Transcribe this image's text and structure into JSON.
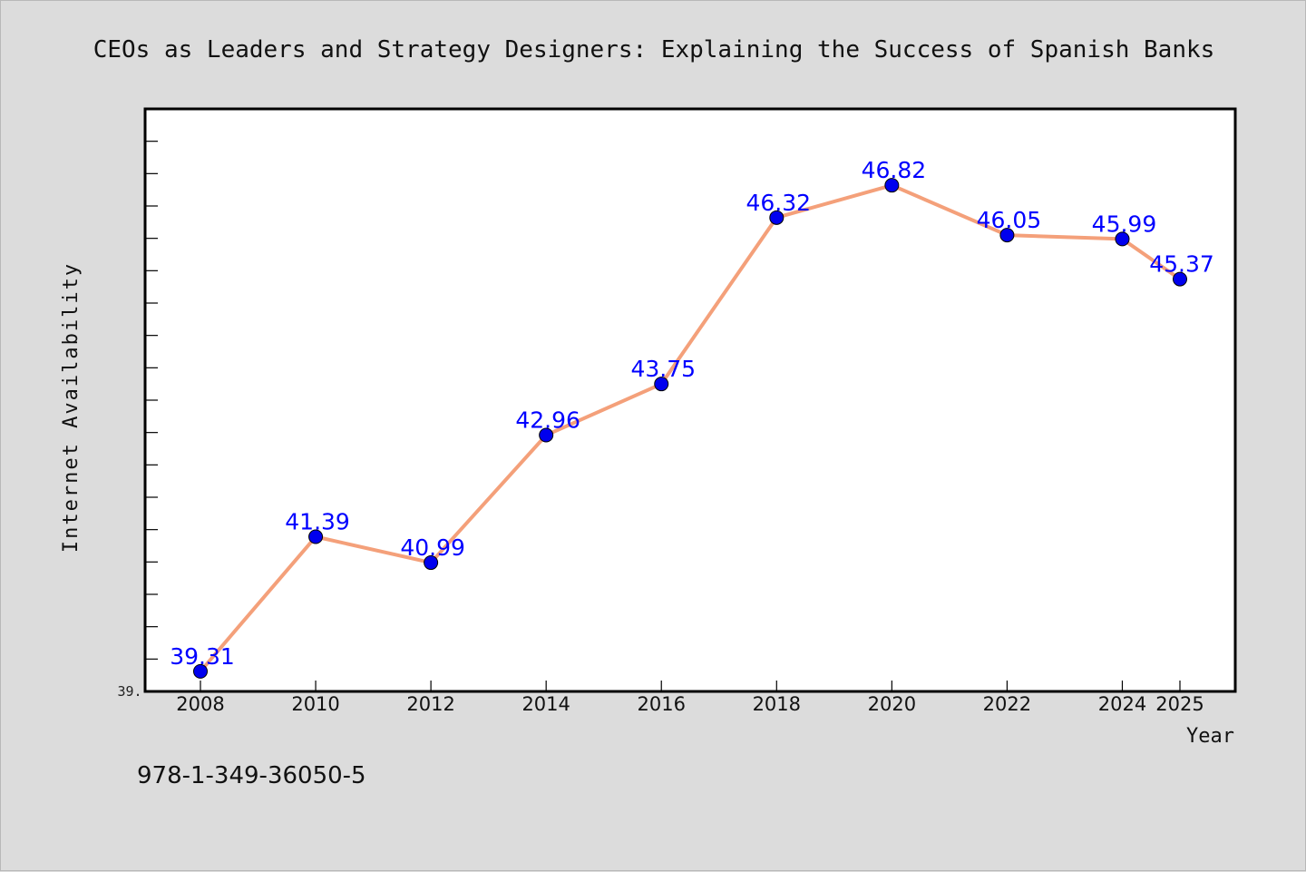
{
  "chart_data": {
    "type": "line",
    "title": "CEOs as Leaders and Strategy Designers: Explaining the Success of Spanish Banks",
    "xlabel": "Year",
    "ylabel": "Internet Availability",
    "x": [
      "2008",
      "2010",
      "2012",
      "2014",
      "2016",
      "2018",
      "2020",
      "2022",
      "2024",
      "2025"
    ],
    "series": [
      {
        "values": [
          39.31,
          41.39,
          40.99,
          42.96,
          43.75,
          46.32,
          46.82,
          46.05,
          45.99,
          45.37
        ],
        "labels": [
          "39.31",
          "41.39",
          "40.99",
          "42.96",
          "43.75",
          "46.32",
          "46.82",
          "46.05",
          "45.99",
          "45.37"
        ]
      }
    ],
    "y_tick_label": "39.",
    "ylim": [
      39.0,
      48.0
    ],
    "grid": false,
    "legend": "none",
    "colors": {
      "line": "#f4a07a",
      "marker": "#0000ee",
      "data_label": "#0000ff",
      "background": "#dcdcdc",
      "plot_background": "#ffffff"
    }
  },
  "footer": {
    "isbn": "978-1-349-36050-5"
  }
}
